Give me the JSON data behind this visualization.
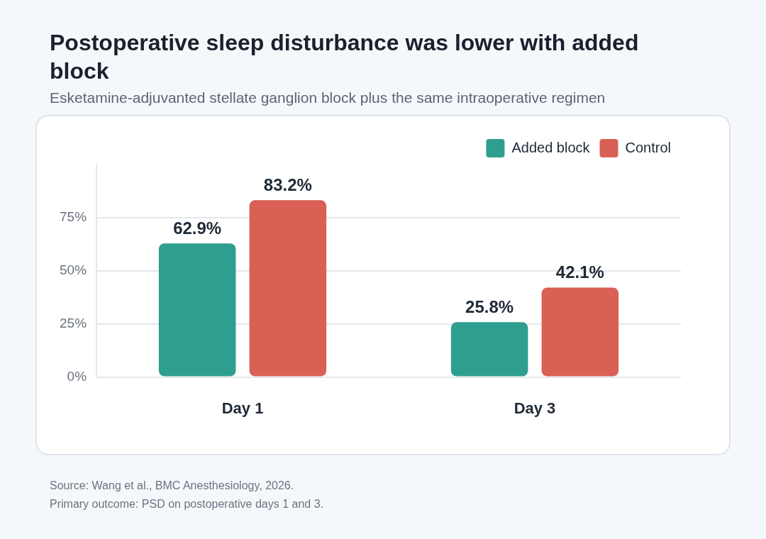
{
  "chart_data": {
    "type": "bar",
    "title": "Postoperative sleep disturbance was lower with added block",
    "subtitle": "Esketamine-adjuvanted stellate ganglion block plus the same intraoperative regimen",
    "categories": [
      "Day 1",
      "Day 3"
    ],
    "series": [
      {
        "name": "Added block",
        "color": "#2e9e8f",
        "values": [
          62.9,
          25.8
        ],
        "value_labels": [
          "62.9%",
          "25.8%"
        ]
      },
      {
        "name": "Control",
        "color": "#d96055",
        "values": [
          83.2,
          42.1
        ],
        "value_labels": [
          "83.2%",
          "42.1%"
        ]
      }
    ],
    "ylim": [
      0,
      100
    ],
    "yticks": [
      {
        "value": 0,
        "label": "0%"
      },
      {
        "value": 25,
        "label": "25%"
      },
      {
        "value": 50,
        "label": "50%"
      },
      {
        "value": 75,
        "label": "75%"
      }
    ],
    "grid": "y",
    "legend": "top right",
    "annotations": [
      "Source: Wang et al., BMC Anesthesiology, 2026.",
      "Primary outcome: PSD on postoperative days 1 and 3."
    ]
  }
}
